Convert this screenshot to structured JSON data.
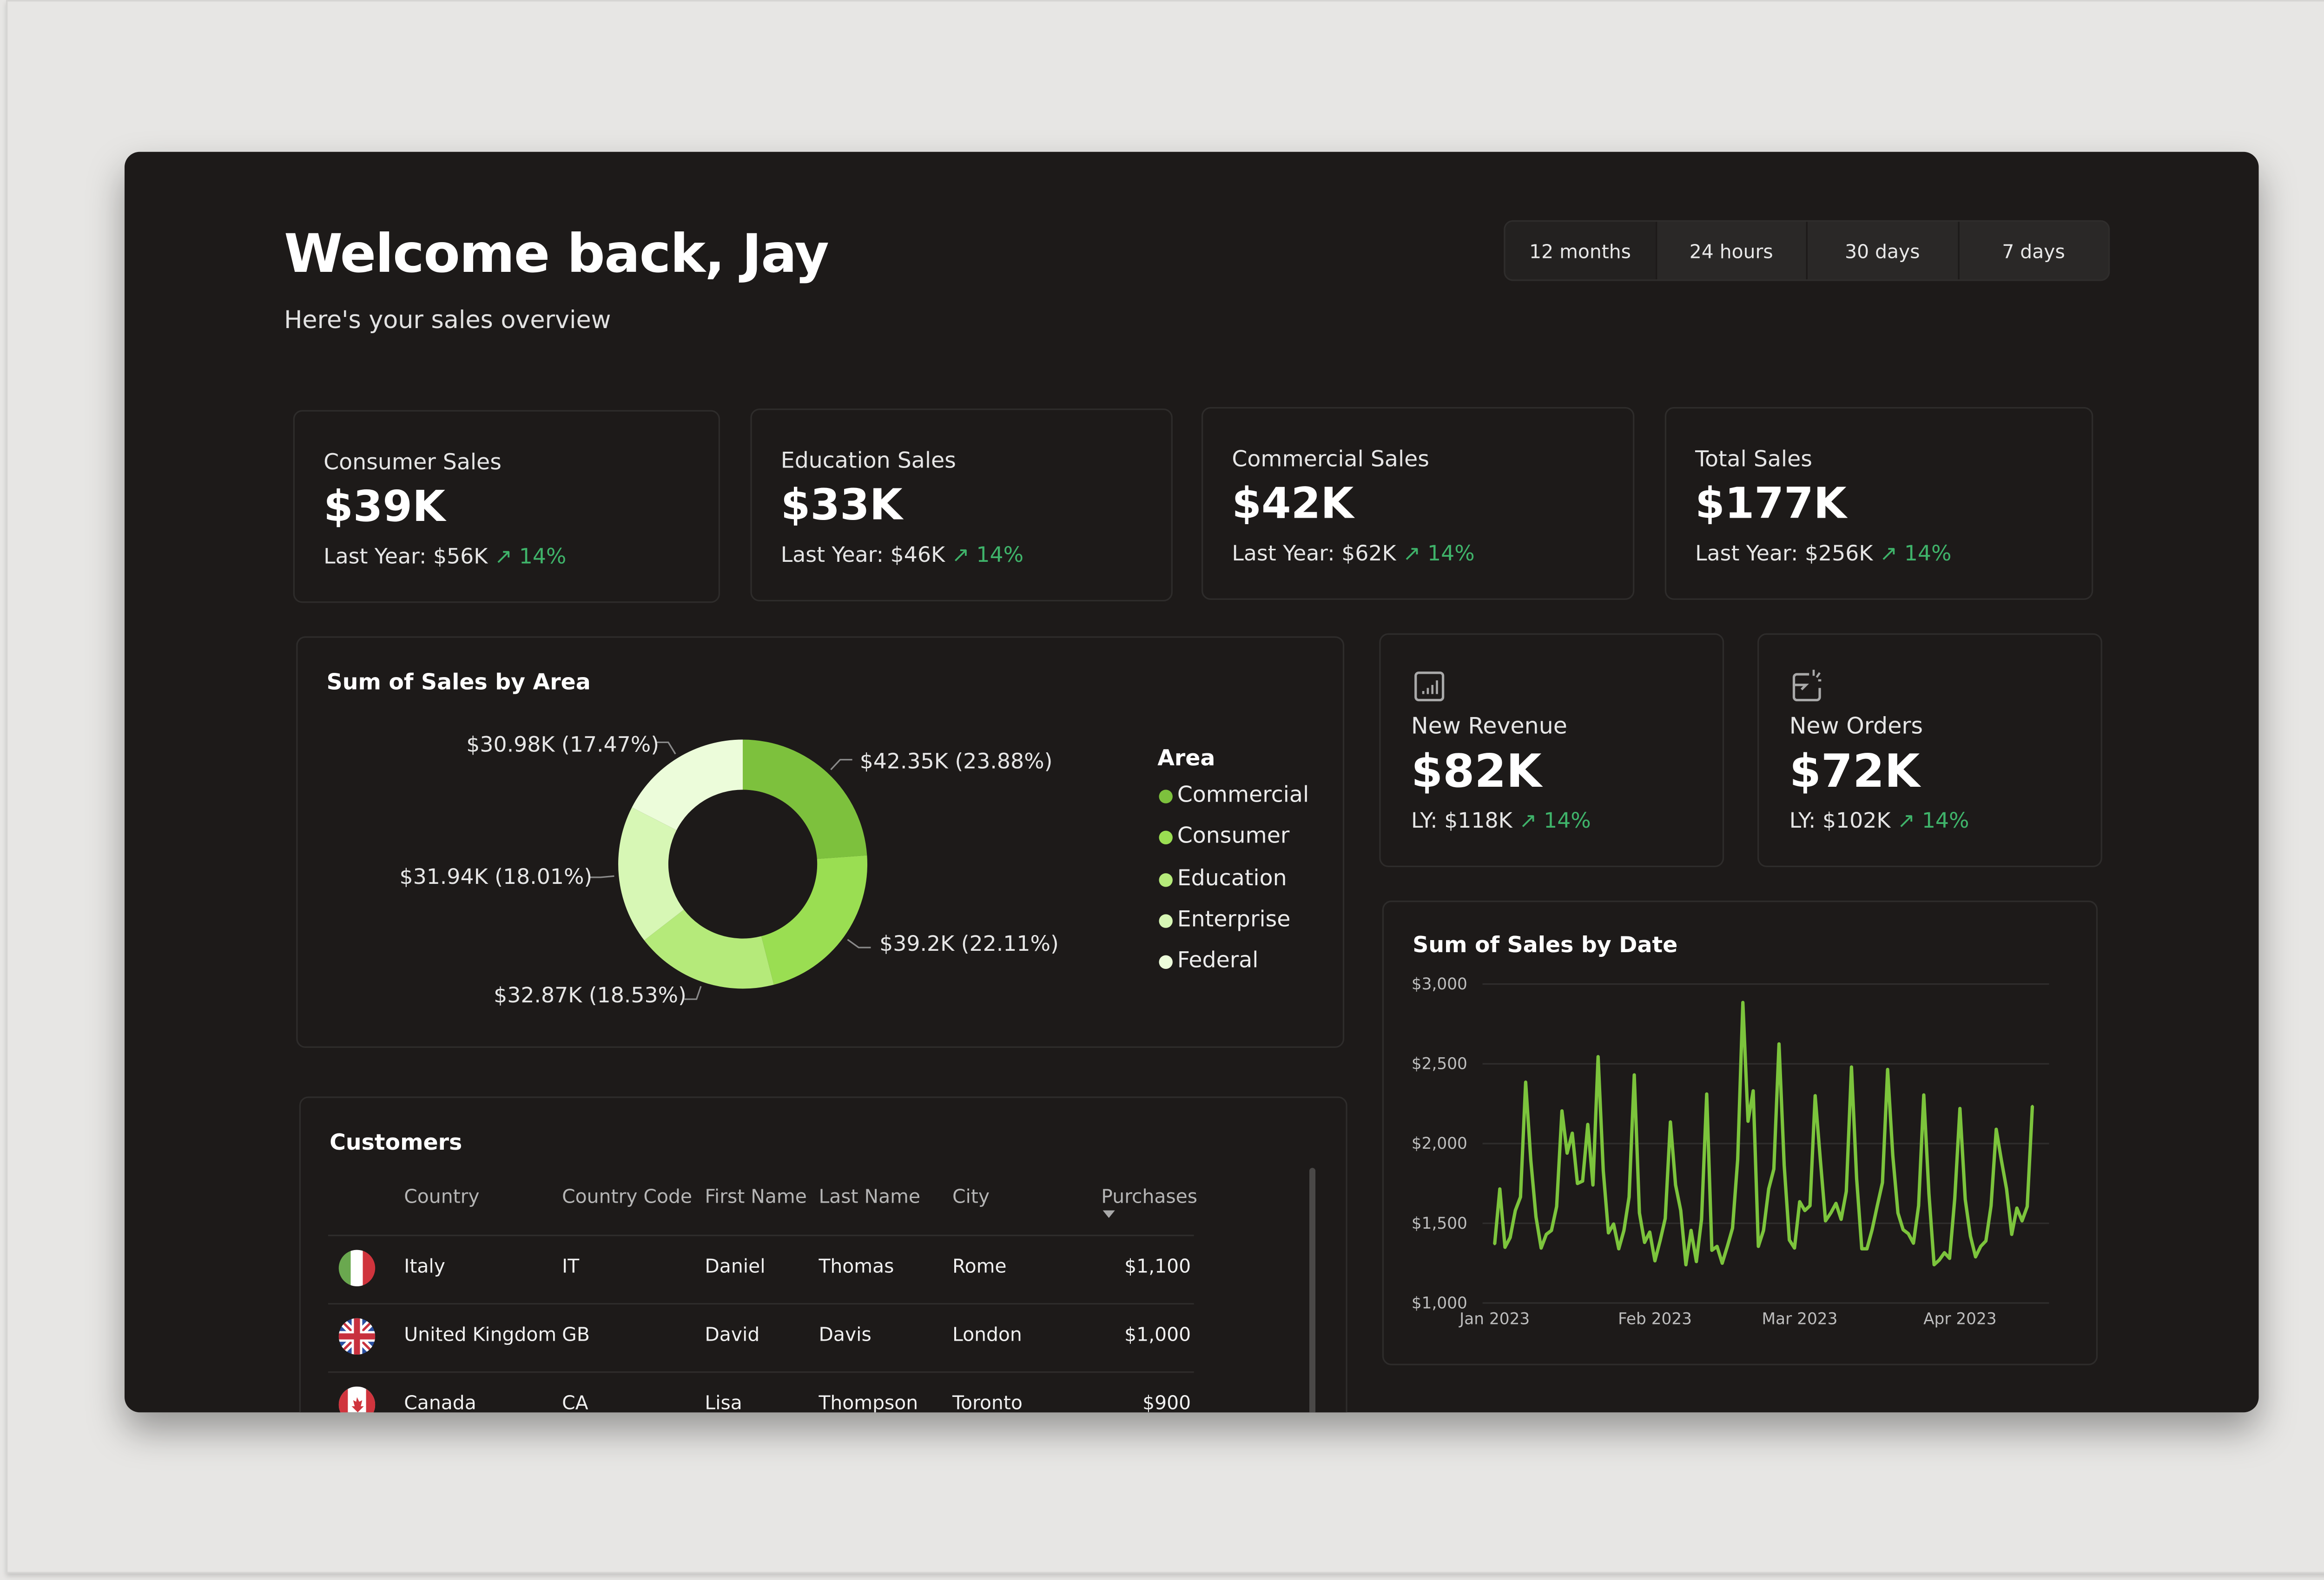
{
  "header": {
    "title": "Welcome back, Jay",
    "subtitle": "Here's your sales overview"
  },
  "time_tabs": [
    {
      "label": "12 months",
      "selected": true
    },
    {
      "label": "24 hours",
      "selected": false
    },
    {
      "label": "30 days",
      "selected": false
    },
    {
      "label": "7 days",
      "selected": false
    }
  ],
  "kpis": [
    {
      "label": "Consumer Sales",
      "value": "$39K",
      "last_year": "Last Year: $56K",
      "trend": "↗ 14%"
    },
    {
      "label": "Education Sales",
      "value": "$33K",
      "last_year": "Last Year: $46K",
      "trend": "↗ 14%"
    },
    {
      "label": "Commercial Sales",
      "value": "$42K",
      "last_year": "Last Year: $62K",
      "trend": "↗ 14%"
    },
    {
      "label": "Total Sales",
      "value": "$177K",
      "last_year": "Last Year: $256K",
      "trend": "↗ 14%"
    }
  ],
  "metrics": [
    {
      "icon": "bar-chart-icon",
      "label": "New Revenue",
      "value": "$82K",
      "last_year": "LY: $118K",
      "trend": "↗ 14%"
    },
    {
      "icon": "orders-icon",
      "label": "New Orders",
      "value": "$72K",
      "last_year": "LY: $102K",
      "trend": "↗ 14%"
    }
  ],
  "colors": {
    "trend_up": "#3fb36a",
    "line": "#7cc43c",
    "background": "#1d1a19"
  },
  "customers": {
    "title": "Customers",
    "columns": [
      "Country",
      "Country Code",
      "First Name",
      "Last Name",
      "City",
      "Purchases"
    ],
    "sort_column": "Purchases",
    "rows": [
      {
        "flag": "italy-flag-icon",
        "country": "Italy",
        "code": "IT",
        "first": "Daniel",
        "last": "Thomas",
        "city": "Rome",
        "purchases": "$1,100"
      },
      {
        "flag": "uk-flag-icon",
        "country": "United Kingdom",
        "code": "GB",
        "first": "David",
        "last": "Davis",
        "city": "London",
        "purchases": "$1,000"
      },
      {
        "flag": "canada-flag-icon",
        "country": "Canada",
        "code": "CA",
        "first": "Lisa",
        "last": "Thompson",
        "city": "Toronto",
        "purchases": "$900"
      }
    ]
  },
  "chart_data": [
    {
      "type": "pie",
      "variant": "donut",
      "title": "Sum of Sales by Area",
      "legend_title": "Area",
      "legend_position": "right",
      "slices": [
        {
          "name": "Commercial",
          "value": 42.35,
          "label": "$42.35K (23.88%)",
          "color": "#7dc13d"
        },
        {
          "name": "Consumer",
          "value": 39.2,
          "label": "$39.2K (22.11%)",
          "color": "#9ade52"
        },
        {
          "name": "Education",
          "value": 32.87,
          "label": "$32.87K (18.53%)",
          "color": "#b5ea7a"
        },
        {
          "name": "Enterprise",
          "value": 31.94,
          "label": "$31.94K (18.01%)",
          "color": "#d7f7b5"
        },
        {
          "name": "Federal",
          "value": 30.98,
          "label": "$30.98K (17.47%)",
          "color": "#ecfcda"
        }
      ]
    },
    {
      "type": "line",
      "title": "Sum of Sales by Date",
      "xlabel": "",
      "ylabel": "",
      "ylim": [
        1000,
        3000
      ],
      "y_ticks": [
        "$1,000",
        "$1,500",
        "$2,000",
        "$2,500",
        "$3,000"
      ],
      "y_tick_values": [
        1000,
        1500,
        2000,
        2500,
        3000
      ],
      "x_ticks": [
        "Jan 2023",
        "Feb 2023",
        "Mar 2023",
        "Apr 2023"
      ],
      "x_tick_values": [
        "2023-01-01",
        "2023-02-01",
        "2023-03-01",
        "2023-04-01"
      ],
      "grid": true,
      "x": [
        "2023-01-01",
        "2023-01-02",
        "2023-01-03",
        "2023-01-04",
        "2023-01-05",
        "2023-01-06",
        "2023-01-07",
        "2023-01-08",
        "2023-01-09",
        "2023-01-10",
        "2023-01-11",
        "2023-01-12",
        "2023-01-13",
        "2023-01-14",
        "2023-01-15",
        "2023-01-16",
        "2023-01-17",
        "2023-01-18",
        "2023-01-19",
        "2023-01-20",
        "2023-01-21",
        "2023-01-22",
        "2023-01-23",
        "2023-01-24",
        "2023-01-25",
        "2023-01-26",
        "2023-01-27",
        "2023-01-28",
        "2023-01-29",
        "2023-01-30",
        "2023-01-31",
        "2023-02-01",
        "2023-02-02",
        "2023-02-03",
        "2023-02-04",
        "2023-02-05",
        "2023-02-06",
        "2023-02-07",
        "2023-02-08",
        "2023-02-09",
        "2023-02-10",
        "2023-02-11",
        "2023-02-12",
        "2023-02-13",
        "2023-02-14",
        "2023-02-15",
        "2023-02-16",
        "2023-02-17",
        "2023-02-18",
        "2023-02-19",
        "2023-02-20",
        "2023-02-21",
        "2023-02-22",
        "2023-02-23",
        "2023-02-24",
        "2023-02-25",
        "2023-02-26",
        "2023-02-27",
        "2023-02-28",
        "2023-03-01",
        "2023-03-02",
        "2023-03-03",
        "2023-03-04",
        "2023-03-05",
        "2023-03-06",
        "2023-03-07",
        "2023-03-08",
        "2023-03-09",
        "2023-03-10",
        "2023-03-11",
        "2023-03-12",
        "2023-03-13",
        "2023-03-14",
        "2023-03-15",
        "2023-03-16",
        "2023-03-17",
        "2023-03-18",
        "2023-03-19",
        "2023-03-20",
        "2023-03-21",
        "2023-03-22",
        "2023-03-23",
        "2023-03-24",
        "2023-03-25",
        "2023-03-26",
        "2023-03-27",
        "2023-03-28",
        "2023-03-29",
        "2023-03-30",
        "2023-03-31",
        "2023-04-01",
        "2023-04-02",
        "2023-04-03",
        "2023-04-04",
        "2023-04-05",
        "2023-04-06",
        "2023-04-07",
        "2023-04-08",
        "2023-04-09",
        "2023-04-10",
        "2023-04-11",
        "2023-04-12",
        "2023-04-13",
        "2023-04-14",
        "2023-04-15"
      ],
      "y": [
        1370,
        1715,
        1350,
        1410,
        1580,
        1665,
        2385,
        1895,
        1540,
        1345,
        1430,
        1455,
        1605,
        2205,
        1940,
        2065,
        1750,
        1765,
        2120,
        1740,
        2545,
        1830,
        1440,
        1495,
        1340,
        1455,
        1665,
        2430,
        1565,
        1380,
        1445,
        1265,
        1390,
        1530,
        2135,
        1740,
        1580,
        1240,
        1455,
        1260,
        1525,
        2310,
        1330,
        1355,
        1250,
        1355,
        1470,
        1900,
        2885,
        2140,
        2330,
        1355,
        1455,
        1715,
        1840,
        2625,
        1865,
        1395,
        1345,
        1635,
        1580,
        1610,
        2300,
        1900,
        1515,
        1565,
        1625,
        1525,
        1700,
        2480,
        1780,
        1340,
        1340,
        1460,
        1610,
        1755,
        2465,
        1925,
        1565,
        1460,
        1435,
        1375,
        1610,
        2305,
        1685,
        1240,
        1270,
        1315,
        1280,
        1655,
        2220,
        1650,
        1420,
        1290,
        1355,
        1390,
        1610,
        2090,
        1895,
        1715,
        1430,
        1595,
        1515,
        1605,
        2235
      ]
    }
  ]
}
